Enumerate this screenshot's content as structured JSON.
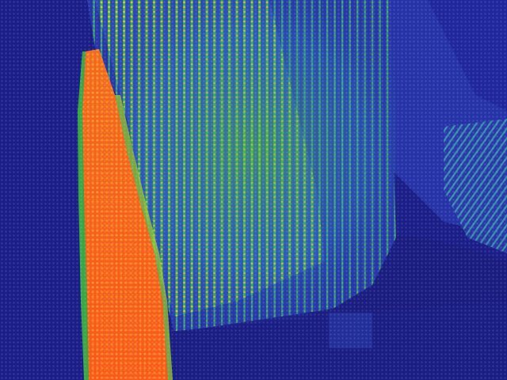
{
  "image": {
    "kind": "thermal-camera-view",
    "palette": {
      "cold": "#1a1d85",
      "cool": "#2a3fb8",
      "mid": "#2f8fd0",
      "warm": "#3fbf3a",
      "warmer": "#c8d22a",
      "hot": "#f06a1e",
      "hottest": "#ff4a14"
    }
  }
}
